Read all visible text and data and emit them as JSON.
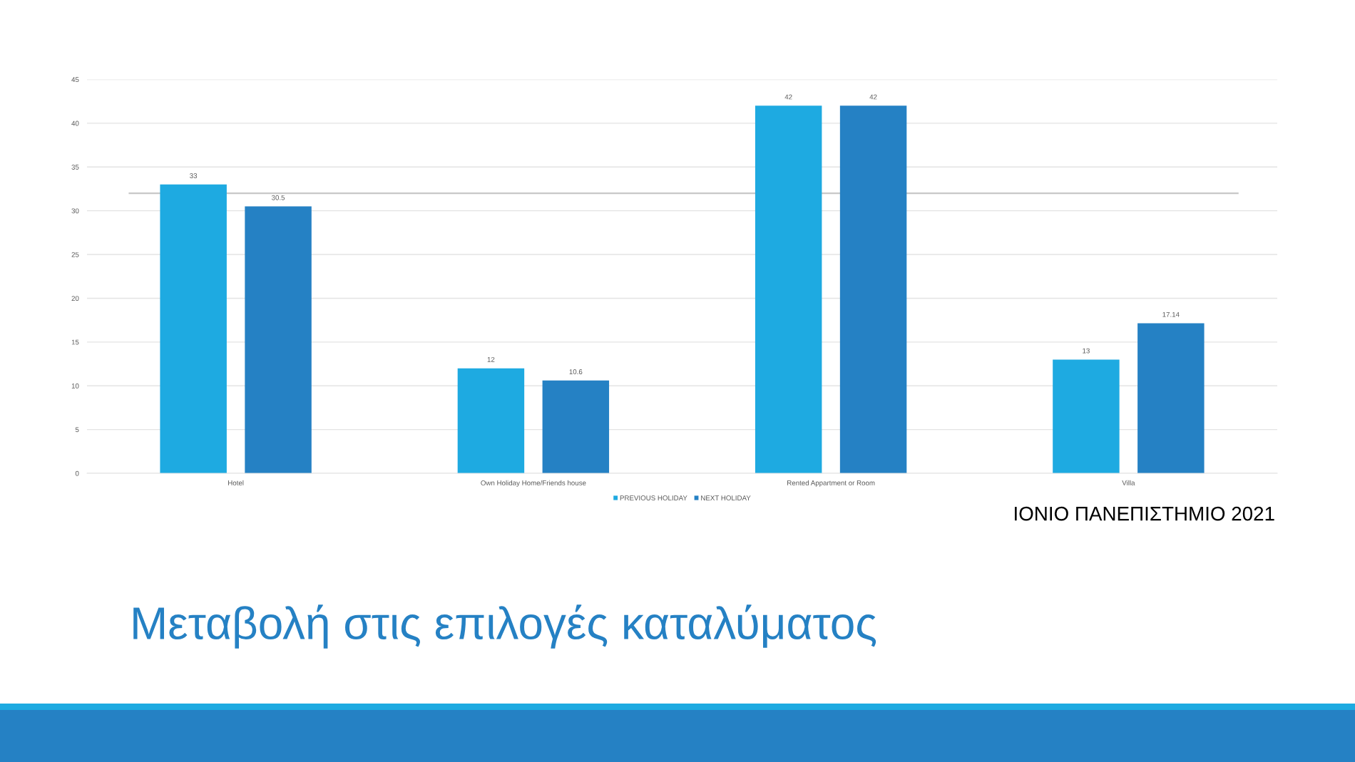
{
  "chart_data": {
    "type": "bar",
    "title": "Μεταβολή στις επιλογές καταλύματος",
    "categories": [
      "Hotel",
      "Own Holiday Home/Friends house",
      "Rented Appartment or Room",
      "Villa"
    ],
    "series": [
      {
        "name": "PREVIOUS HOLIDAY",
        "color": "#1eaae1",
        "values": [
          33,
          12,
          42,
          13
        ]
      },
      {
        "name": "NEXT HOLIDAY",
        "color": "#2581c4",
        "values": [
          30.5,
          10.6,
          42,
          17.14
        ]
      }
    ],
    "ylim": [
      0,
      45
    ],
    "yticks": [
      0,
      5,
      10,
      15,
      20,
      25,
      30,
      35,
      40,
      45
    ],
    "grid": "y",
    "legend": "bottom",
    "data_labels": true,
    "ref_lines": [
      {
        "axis": "y",
        "value": 32,
        "color": "#c8c8c8"
      }
    ],
    "annotations": [
      "ΙΟΝΙΟ ΠΑΝΕΠΙΣΤΗΜΙΟ 2021"
    ]
  }
}
